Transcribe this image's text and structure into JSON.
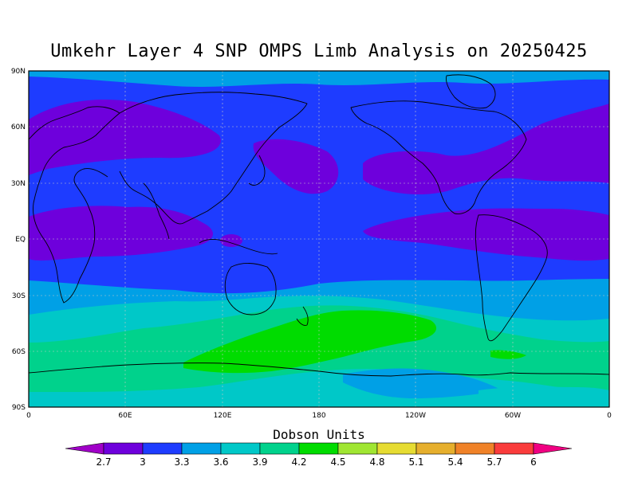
{
  "title": "Umkehr Layer 4 SNP OMPS Limb Analysis on 20250425",
  "colorbar": {
    "title": "Dobson Units",
    "levels": [
      "2.7",
      "3",
      "3.3",
      "3.6",
      "3.9",
      "4.2",
      "4.5",
      "4.8",
      "5.1",
      "5.4",
      "5.7",
      "6"
    ],
    "colors": [
      "#a000c8",
      "#6e00dc",
      "#1e3cff",
      "#00a0e6",
      "#00c8c8",
      "#00d28c",
      "#00dc00",
      "#a0e632",
      "#e6dc32",
      "#e6af2d",
      "#f08228",
      "#fa3c3c",
      "#f00082"
    ]
  },
  "map": {
    "lat_labels": [
      "90N",
      "60N",
      "30N",
      "EQ",
      "30S",
      "60S",
      "90S"
    ],
    "lon_labels": [
      "0",
      "60E",
      "120E",
      "180",
      "120W",
      "60W",
      "0"
    ]
  }
}
